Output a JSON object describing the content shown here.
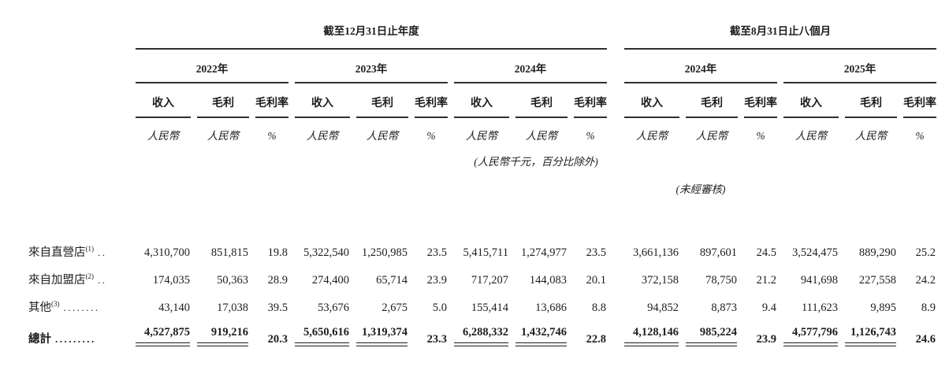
{
  "table": {
    "groups": [
      {
        "title": "截至12月31日止年度",
        "years": [
          "2022年",
          "2023年",
          "2024年"
        ]
      },
      {
        "title": "截至8月31日止八個月",
        "years": [
          "2024年",
          "2025年"
        ]
      }
    ],
    "sub_headers": {
      "revenue": "收入",
      "gross_profit": "毛利",
      "gross_margin": "毛利率"
    },
    "units": {
      "rmb": "人民幣",
      "percent": "%"
    },
    "units_note": "(人民幣千元，百分比除外)",
    "unaudited_note": "(未經審核)",
    "rows": [
      {
        "label": "來自直營店",
        "note": "(1)",
        "leader": "..",
        "values": [
          "4,310,700",
          "851,815",
          "19.8",
          "5,322,540",
          "1,250,985",
          "23.5",
          "5,415,711",
          "1,274,977",
          "23.5",
          "3,661,136",
          "897,601",
          "24.5",
          "3,524,475",
          "889,290",
          "25.2"
        ]
      },
      {
        "label": "來自加盟店",
        "note": "(2)",
        "leader": "..",
        "values": [
          "174,035",
          "50,363",
          "28.9",
          "274,400",
          "65,714",
          "23.9",
          "717,207",
          "144,083",
          "20.1",
          "372,158",
          "78,750",
          "21.2",
          "941,698",
          "227,558",
          "24.2"
        ]
      },
      {
        "label": "其他",
        "note": "(3)",
        "leader": "........",
        "values": [
          "43,140",
          "17,038",
          "39.5",
          "53,676",
          "2,675",
          "5.0",
          "155,414",
          "13,686",
          "8.8",
          "94,852",
          "8,873",
          "9.4",
          "111,623",
          "9,895",
          "8.9"
        ]
      }
    ],
    "total_row": {
      "label": "總計",
      "leader": ".........",
      "values": [
        "4,527,875",
        "919,216",
        "20.3",
        "5,650,616",
        "1,319,374",
        "23.3",
        "6,288,332",
        "1,432,746",
        "22.8",
        "4,128,146",
        "985,224",
        "23.9",
        "4,577,796",
        "1,126,743",
        "24.6"
      ]
    }
  }
}
